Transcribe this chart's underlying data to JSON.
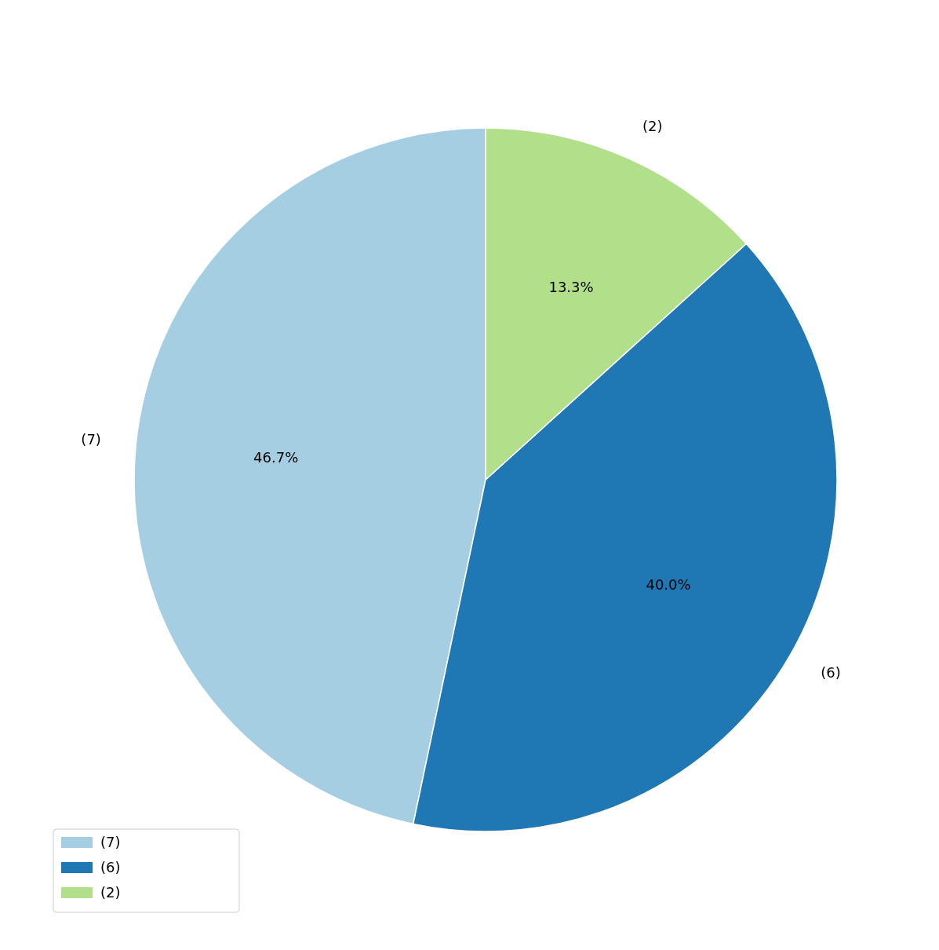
{
  "chart_data": {
    "type": "pie",
    "categories": [
      "(7)",
      "(6)",
      "(2)"
    ],
    "values": [
      46.7,
      40.0,
      13.3
    ],
    "value_labels": [
      "46.7%",
      "40.0%",
      "13.3%"
    ],
    "colors": [
      "#a6cee3",
      "#1f78b4",
      "#b2df8a"
    ],
    "legend": "bottom left"
  }
}
